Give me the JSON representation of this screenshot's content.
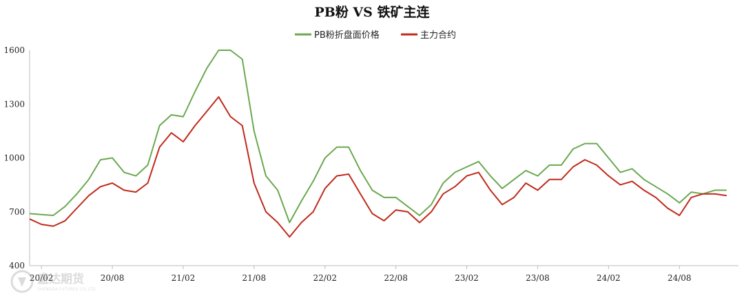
{
  "chart_data": {
    "type": "line",
    "title": "PB粉 VS 铁矿主连",
    "legend_position": "top-center",
    "grid": false,
    "ylim": [
      400,
      1600
    ],
    "yticks": [
      400,
      700,
      1000,
      1300,
      1600
    ],
    "xlim": [
      "2020-01",
      "2025-01"
    ],
    "xticks": [
      "20/02",
      "20/08",
      "21/02",
      "21/08",
      "22/02",
      "22/08",
      "23/02",
      "23/08",
      "24/02",
      "24/08"
    ],
    "x": [
      "2020-01",
      "2020-02",
      "2020-03",
      "2020-04",
      "2020-05",
      "2020-06",
      "2020-07",
      "2020-08",
      "2020-09",
      "2020-10",
      "2020-11",
      "2020-12",
      "2021-01",
      "2021-02",
      "2021-03",
      "2021-04",
      "2021-05",
      "2021-06",
      "2021-07",
      "2021-08",
      "2021-09",
      "2021-10",
      "2021-11",
      "2021-12",
      "2022-01",
      "2022-02",
      "2022-03",
      "2022-04",
      "2022-05",
      "2022-06",
      "2022-07",
      "2022-08",
      "2022-09",
      "2022-10",
      "2022-11",
      "2022-12",
      "2023-01",
      "2023-02",
      "2023-03",
      "2023-04",
      "2023-05",
      "2023-06",
      "2023-07",
      "2023-08",
      "2023-09",
      "2023-10",
      "2023-11",
      "2023-12",
      "2024-01",
      "2024-02",
      "2024-03",
      "2024-04",
      "2024-05",
      "2024-06",
      "2024-07",
      "2024-08",
      "2024-09",
      "2024-10",
      "2024-11",
      "2024-12"
    ],
    "series": [
      {
        "name": "PB粉折盘面价格",
        "color": "#6aa84f",
        "values": [
          690,
          685,
          680,
          730,
          800,
          880,
          990,
          1000,
          920,
          900,
          960,
          1180,
          1240,
          1230,
          1370,
          1500,
          1600,
          1600,
          1550,
          1150,
          900,
          820,
          640,
          760,
          870,
          1000,
          1060,
          1060,
          930,
          820,
          780,
          780,
          730,
          680,
          740,
          860,
          920,
          950,
          980,
          900,
          830,
          880,
          930,
          900,
          960,
          960,
          1050,
          1080,
          1080,
          1000,
          920,
          940,
          880,
          840,
          800,
          750,
          810,
          800,
          820,
          820
        ]
      },
      {
        "name": "主力合约",
        "color": "#c0291b",
        "values": [
          660,
          630,
          620,
          650,
          720,
          790,
          840,
          860,
          820,
          810,
          860,
          1060,
          1140,
          1090,
          1180,
          1260,
          1340,
          1230,
          1180,
          860,
          700,
          640,
          560,
          640,
          700,
          830,
          900,
          910,
          800,
          690,
          650,
          710,
          700,
          640,
          700,
          800,
          840,
          900,
          920,
          820,
          740,
          780,
          860,
          820,
          880,
          880,
          950,
          990,
          960,
          900,
          850,
          870,
          820,
          780,
          720,
          680,
          780,
          800,
          800,
          790
        ]
      }
    ]
  },
  "logo": {
    "text": "盛达期货",
    "subtext": "SHENGDA FUTURES CO.,LTD."
  }
}
